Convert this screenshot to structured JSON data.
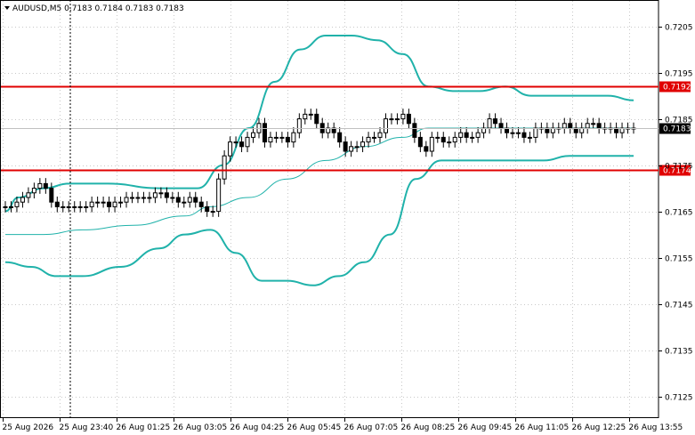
{
  "header": {
    "symbol_line": "AUDUSD,M5  0.7183 0.7184 0.7183 0.7183"
  },
  "colors": {
    "background": "#ffffff",
    "grid": "#c8c8c8",
    "candle": "#000000",
    "bollinger": "#20b2aa",
    "level_line": "#e00000",
    "current_price_box": "#000000"
  },
  "chart_data": {
    "type": "candlestick",
    "ylim": [
      0.71205,
      0.72105
    ],
    "y_ticks": [
      "0.7205",
      "0.7195",
      "0.7185",
      "0.7175",
      "0.7165",
      "0.7155",
      "0.7145",
      "0.7135",
      "0.7125"
    ],
    "x_ticks": [
      "25 Aug 2026",
      "25 Aug 23:40",
      "26 Aug 01:25",
      "26 Aug 03:05",
      "26 Aug 04:25",
      "26 Aug 05:45",
      "26 Aug 07:05",
      "26 Aug 08:25",
      "26 Aug 09:45",
      "26 Aug 11:05",
      "26 Aug 12:25",
      "26 Aug 13:55"
    ],
    "levels": [
      {
        "value": 0.7192,
        "label": "0.7192"
      },
      {
        "value": 0.7174,
        "label": "0.7174"
      }
    ],
    "current_price": {
      "value": 0.7183,
      "label": "0.7183"
    },
    "close": [
      0.7166,
      0.7166,
      0.7167,
      0.7168,
      0.7169,
      0.717,
      0.7171,
      0.717,
      0.7167,
      0.7166,
      0.7166,
      0.7166,
      0.7166,
      0.7166,
      0.7166,
      0.7167,
      0.7167,
      0.7167,
      0.7166,
      0.7167,
      0.7167,
      0.7168,
      0.7168,
      0.7168,
      0.7168,
      0.7168,
      0.7169,
      0.7169,
      0.7168,
      0.7168,
      0.7167,
      0.7167,
      0.7168,
      0.7167,
      0.7166,
      0.7165,
      0.7165,
      0.7172,
      0.7177,
      0.718,
      0.718,
      0.7179,
      0.7181,
      0.7182,
      0.7184,
      0.718,
      0.7181,
      0.7181,
      0.7181,
      0.718,
      0.7182,
      0.7185,
      0.7186,
      0.7186,
      0.7184,
      0.7182,
      0.7183,
      0.7182,
      0.718,
      0.7178,
      0.7179,
      0.7179,
      0.718,
      0.7181,
      0.7181,
      0.7182,
      0.7185,
      0.7185,
      0.7185,
      0.7186,
      0.7184,
      0.7181,
      0.7179,
      0.7178,
      0.7181,
      0.7181,
      0.718,
      0.718,
      0.7181,
      0.7182,
      0.7181,
      0.7181,
      0.7182,
      0.7183,
      0.7185,
      0.7184,
      0.7183,
      0.7182,
      0.7182,
      0.7182,
      0.7181,
      0.7181,
      0.7183,
      0.7183,
      0.7182,
      0.7183,
      0.7183,
      0.7184,
      0.7183,
      0.7182,
      0.7183,
      0.7184,
      0.7184,
      0.7183,
      0.7183,
      0.7183,
      0.7182,
      0.7183,
      0.7183,
      0.7183
    ],
    "bollinger": {
      "upper": [
        [
          0,
          0.7165
        ],
        [
          5,
          0.7168
        ],
        [
          15,
          0.717
        ],
        [
          25,
          0.7171
        ],
        [
          40,
          0.7171
        ],
        [
          60,
          0.717
        ],
        [
          75,
          0.717
        ],
        [
          85,
          0.7175
        ],
        [
          95,
          0.7183
        ],
        [
          105,
          0.7193
        ],
        [
          115,
          0.72
        ],
        [
          125,
          0.7203
        ],
        [
          135,
          0.7203
        ],
        [
          145,
          0.7202
        ],
        [
          155,
          0.7199
        ],
        [
          165,
          0.7192
        ],
        [
          175,
          0.7191
        ],
        [
          185,
          0.7191
        ],
        [
          195,
          0.7192
        ],
        [
          205,
          0.719
        ],
        [
          215,
          0.719
        ],
        [
          225,
          0.719
        ],
        [
          235,
          0.719
        ],
        [
          245,
          0.7189
        ]
      ],
      "middle": [
        [
          0,
          0.716
        ],
        [
          15,
          0.716
        ],
        [
          30,
          0.7161
        ],
        [
          50,
          0.7162
        ],
        [
          70,
          0.7164
        ],
        [
          80,
          0.7166
        ],
        [
          95,
          0.7168
        ],
        [
          110,
          0.7172
        ],
        [
          125,
          0.7176
        ],
        [
          140,
          0.7179
        ],
        [
          155,
          0.7181
        ],
        [
          165,
          0.7183
        ],
        [
          175,
          0.7183
        ],
        [
          195,
          0.7183
        ],
        [
          215,
          0.7183
        ],
        [
          245,
          0.7183
        ]
      ],
      "lower": [
        [
          0,
          0.7154
        ],
        [
          10,
          0.7153
        ],
        [
          20,
          0.7151
        ],
        [
          30,
          0.7151
        ],
        [
          45,
          0.7153
        ],
        [
          60,
          0.7157
        ],
        [
          70,
          0.716
        ],
        [
          80,
          0.7161
        ],
        [
          90,
          0.7156
        ],
        [
          100,
          0.715
        ],
        [
          110,
          0.715
        ],
        [
          120,
          0.7149
        ],
        [
          130,
          0.7151
        ],
        [
          140,
          0.7154
        ],
        [
          150,
          0.716
        ],
        [
          160,
          0.7172
        ],
        [
          170,
          0.7176
        ],
        [
          180,
          0.7176
        ],
        [
          190,
          0.7176
        ],
        [
          200,
          0.7176
        ],
        [
          210,
          0.7176
        ],
        [
          220,
          0.7177
        ],
        [
          235,
          0.7177
        ],
        [
          245,
          0.7177
        ]
      ],
      "band_x_max": 245
    }
  }
}
